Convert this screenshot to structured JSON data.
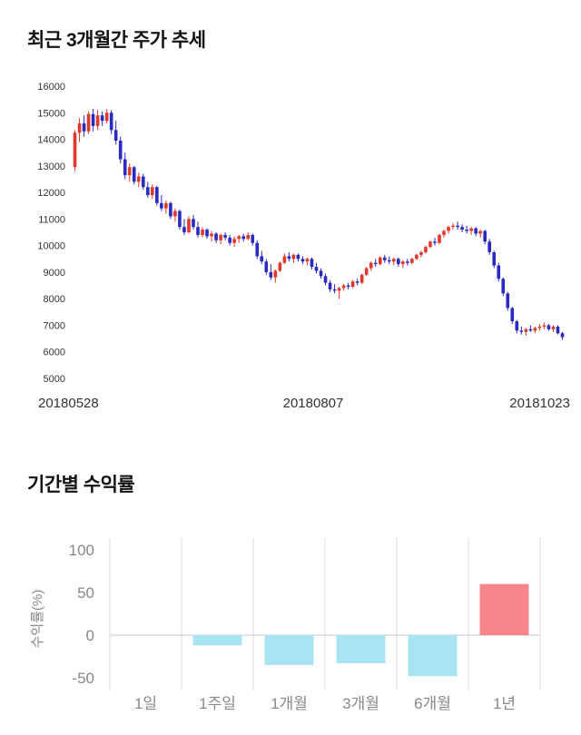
{
  "sections": {
    "price_trend": {
      "title": "최근 3개월간 주가 추세"
    },
    "returns": {
      "title": "기간별 수익률"
    }
  },
  "chart_data": [
    {
      "type": "candlestick",
      "title": "최근 3개월간 주가 추세",
      "ylim": [
        5000,
        16000
      ],
      "yticks": [
        16000,
        15000,
        14000,
        13000,
        12000,
        11000,
        10000,
        9000,
        8000,
        7000,
        6000,
        5000
      ],
      "x_labels": [
        "20180528",
        "20180807",
        "20181023"
      ],
      "up_color": "#e0382e",
      "down_color": "#2a2ac0",
      "tick_color": "#333333",
      "candles": [
        [
          12950,
          14350,
          12800,
          14250
        ],
        [
          14250,
          14800,
          13900,
          14600
        ],
        [
          14600,
          14900,
          14100,
          14300
        ],
        [
          14300,
          15050,
          14200,
          14950
        ],
        [
          14950,
          15150,
          14300,
          14500
        ],
        [
          14500,
          15100,
          14350,
          14900
        ],
        [
          14900,
          15050,
          14500,
          14700
        ],
        [
          14700,
          15150,
          14600,
          15000
        ],
        [
          15000,
          15100,
          14200,
          14350
        ],
        [
          14350,
          14700,
          13800,
          13950
        ],
        [
          13950,
          14100,
          13100,
          13250
        ],
        [
          13250,
          13500,
          12500,
          12650
        ],
        [
          12650,
          13100,
          12400,
          12950
        ],
        [
          12950,
          13000,
          12300,
          12400
        ],
        [
          12400,
          12750,
          12200,
          12600
        ],
        [
          12600,
          12700,
          12100,
          12200
        ],
        [
          12200,
          12400,
          11800,
          11900
        ],
        [
          11900,
          12300,
          11750,
          12200
        ],
        [
          12200,
          12250,
          11500,
          11600
        ],
        [
          11600,
          11900,
          11300,
          11400
        ],
        [
          11400,
          11700,
          11200,
          11600
        ],
        [
          11600,
          11650,
          11000,
          11100
        ],
        [
          11100,
          11400,
          10900,
          11300
        ],
        [
          11300,
          11350,
          10600,
          10700
        ],
        [
          10700,
          11000,
          10400,
          10500
        ],
        [
          10500,
          11100,
          10450,
          11000
        ],
        [
          11000,
          11150,
          10600,
          10700
        ],
        [
          10700,
          10900,
          10300,
          10400
        ],
        [
          10400,
          10700,
          10300,
          10600
        ],
        [
          10600,
          10650,
          10250,
          10350
        ],
        [
          10350,
          10550,
          10150,
          10450
        ],
        [
          10450,
          10500,
          10100,
          10200
        ],
        [
          10200,
          10450,
          10050,
          10400
        ],
        [
          10400,
          10500,
          10200,
          10300
        ],
        [
          10300,
          10400,
          10000,
          10100
        ],
        [
          10100,
          10350,
          9950,
          10250
        ],
        [
          10250,
          10400,
          10100,
          10350
        ],
        [
          10350,
          10450,
          10150,
          10250
        ],
        [
          10250,
          10500,
          10200,
          10400
        ],
        [
          10400,
          10450,
          10000,
          10100
        ],
        [
          10100,
          10200,
          9500,
          9600
        ],
        [
          9600,
          9800,
          9300,
          9400
        ],
        [
          9400,
          9500,
          8900,
          9000
        ],
        [
          9000,
          9300,
          8700,
          8800
        ],
        [
          8800,
          9100,
          8600,
          9050
        ],
        [
          9050,
          9400,
          9000,
          9350
        ],
        [
          9350,
          9700,
          9300,
          9600
        ],
        [
          9600,
          9750,
          9400,
          9500
        ],
        [
          9500,
          9700,
          9350,
          9650
        ],
        [
          9650,
          9700,
          9400,
          9500
        ],
        [
          9500,
          9600,
          9300,
          9400
        ],
        [
          9400,
          9550,
          9250,
          9500
        ],
        [
          9500,
          9550,
          9100,
          9200
        ],
        [
          9200,
          9350,
          8950,
          9050
        ],
        [
          9050,
          9150,
          8750,
          8850
        ],
        [
          8850,
          8950,
          8500,
          8600
        ],
        [
          8600,
          8700,
          8250,
          8350
        ],
        [
          8350,
          8550,
          8200,
          8300
        ],
        [
          8300,
          8450,
          8000,
          8400
        ],
        [
          8400,
          8550,
          8300,
          8500
        ],
        [
          8500,
          8600,
          8350,
          8450
        ],
        [
          8450,
          8700,
          8400,
          8650
        ],
        [
          8650,
          8750,
          8500,
          8600
        ],
        [
          8600,
          8950,
          8550,
          8900
        ],
        [
          8900,
          9200,
          8850,
          9150
        ],
        [
          9150,
          9400,
          9050,
          9350
        ],
        [
          9350,
          9500,
          9200,
          9300
        ],
        [
          9300,
          9600,
          9250,
          9550
        ],
        [
          9550,
          9650,
          9350,
          9450
        ],
        [
          9450,
          9600,
          9300,
          9400
        ],
        [
          9400,
          9550,
          9250,
          9500
        ],
        [
          9500,
          9550,
          9200,
          9300
        ],
        [
          9300,
          9450,
          9150,
          9400
        ],
        [
          9400,
          9500,
          9250,
          9350
        ],
        [
          9350,
          9550,
          9300,
          9500
        ],
        [
          9500,
          9700,
          9450,
          9650
        ],
        [
          9650,
          9800,
          9550,
          9750
        ],
        [
          9750,
          10000,
          9700,
          9950
        ],
        [
          9950,
          10200,
          9900,
          10150
        ],
        [
          10150,
          10300,
          10000,
          10100
        ],
        [
          10100,
          10450,
          10050,
          10400
        ],
        [
          10400,
          10600,
          10300,
          10550
        ],
        [
          10550,
          10750,
          10450,
          10700
        ],
        [
          10700,
          10850,
          10600,
          10750
        ],
        [
          10750,
          10900,
          10600,
          10700
        ],
        [
          10700,
          10800,
          10500,
          10600
        ],
        [
          10600,
          10750,
          10450,
          10550
        ],
        [
          10550,
          10700,
          10400,
          10650
        ],
        [
          10650,
          10700,
          10350,
          10450
        ],
        [
          10450,
          10600,
          10300,
          10550
        ],
        [
          10550,
          10600,
          10050,
          10150
        ],
        [
          10150,
          10250,
          9650,
          9750
        ],
        [
          9750,
          9800,
          9150,
          9250
        ],
        [
          9250,
          9350,
          8650,
          8750
        ],
        [
          8750,
          8800,
          8100,
          8200
        ],
        [
          8200,
          8250,
          7550,
          7650
        ],
        [
          7650,
          7700,
          7050,
          7150
        ],
        [
          7150,
          7200,
          6700,
          6800
        ],
        [
          6800,
          6950,
          6650,
          6750
        ],
        [
          6750,
          6900,
          6600,
          6850
        ],
        [
          6850,
          7000,
          6750,
          6800
        ],
        [
          6800,
          6950,
          6700,
          6900
        ],
        [
          6900,
          7050,
          6800,
          6950
        ],
        [
          6950,
          7100,
          6850,
          7000
        ],
        [
          7000,
          7050,
          6800,
          6850
        ],
        [
          6850,
          7000,
          6750,
          6950
        ],
        [
          6950,
          7000,
          6650,
          6700
        ],
        [
          6700,
          6750,
          6450,
          6550
        ]
      ]
    },
    {
      "type": "bar",
      "title": "기간별 수익률",
      "ylabel": "수익률(%)",
      "categories": [
        "1일",
        "1주일",
        "1개월",
        "3개월",
        "6개월",
        "1년"
      ],
      "values": [
        0,
        -12,
        -35,
        -33,
        -48,
        60
      ],
      "yticks": [
        100,
        50,
        0,
        -50
      ],
      "ylim": [
        -65,
        100
      ],
      "negative_color": "#a8e4f2",
      "positive_color": "#f9858c",
      "grid_color": "#dddddd",
      "zero_line_color": "#c8c8c8",
      "tick_color": "#888888"
    }
  ]
}
